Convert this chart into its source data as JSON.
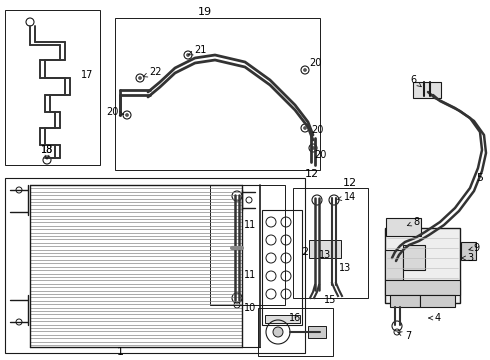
{
  "bg_color": "#ffffff",
  "lc": "#1a1a1a",
  "fig_width": 4.9,
  "fig_height": 3.6,
  "dpi": 100
}
